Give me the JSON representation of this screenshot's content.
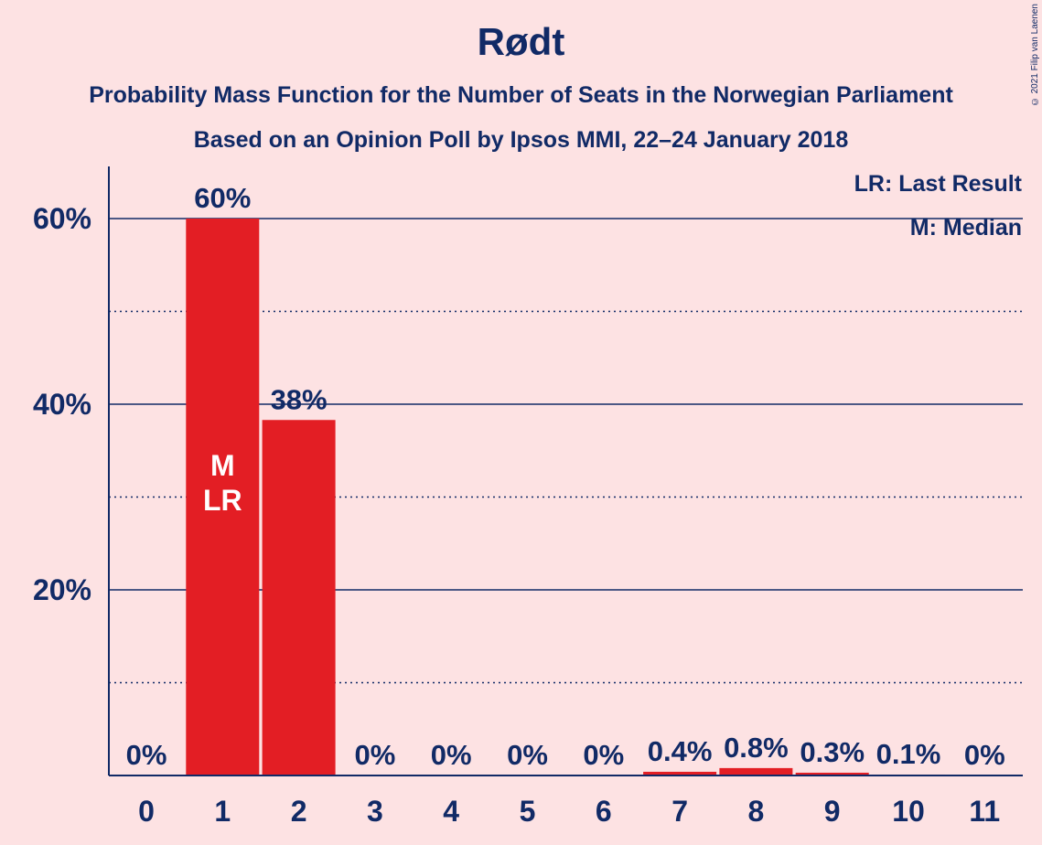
{
  "chart_data": {
    "type": "bar",
    "title": "Rødt",
    "subtitle": [
      "Probability Mass Function for the Number of Seats in the Norwegian Parliament",
      "Based on an Opinion Poll by Ipsos MMI, 22–24 January 2018"
    ],
    "categories": [
      "0",
      "1",
      "2",
      "3",
      "4",
      "5",
      "6",
      "7",
      "8",
      "9",
      "10",
      "11"
    ],
    "values": [
      0,
      60,
      38.3,
      0,
      0,
      0,
      0,
      0.4,
      0.8,
      0.3,
      0.1,
      0
    ],
    "value_labels": [
      "0%",
      "60%",
      "38%",
      "0%",
      "0%",
      "0%",
      "0%",
      "0.4%",
      "0.8%",
      "0.3%",
      "0.1%",
      "0%"
    ],
    "ylim": [
      0,
      66
    ],
    "yticks": [
      20,
      40,
      60
    ],
    "ytick_labels": [
      "20%",
      "40%",
      "60%"
    ],
    "minor_gridlines": [
      10,
      30,
      50
    ],
    "bar_color": "#E31E24",
    "axis_color": "#112A66",
    "background": "#FDE2E3",
    "markers": [
      {
        "category": "1",
        "labels": [
          "M",
          "LR"
        ]
      }
    ],
    "legend": {
      "position": "top-right",
      "entries": [
        "LR: Last Result",
        "M: Median"
      ]
    }
  },
  "copyright": "© 2021 Filip van Laenen"
}
